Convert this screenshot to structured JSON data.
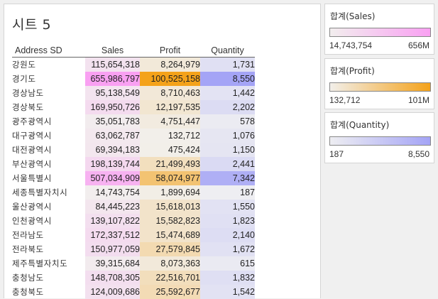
{
  "sheet": {
    "title": "시트 5"
  },
  "table": {
    "headers": {
      "address": "Address SD",
      "sales": "Sales",
      "profit": "Profit",
      "quantity": "Quantity"
    },
    "rows": [
      {
        "address": "강원도",
        "sales": "115,654,318",
        "profit": "8,264,979",
        "quantity": "1,731"
      },
      {
        "address": "경기도",
        "sales": "655,986,797",
        "profit": "100,525,158",
        "quantity": "8,550"
      },
      {
        "address": "경상남도",
        "sales": "95,138,549",
        "profit": "8,710,463",
        "quantity": "1,442"
      },
      {
        "address": "경상북도",
        "sales": "169,950,726",
        "profit": "12,197,535",
        "quantity": "2,202"
      },
      {
        "address": "광주광역시",
        "sales": "35,051,783",
        "profit": "4,751,447",
        "quantity": "578"
      },
      {
        "address": "대구광역시",
        "sales": "63,062,787",
        "profit": "132,712",
        "quantity": "1,076"
      },
      {
        "address": "대전광역시",
        "sales": "69,394,183",
        "profit": "475,424",
        "quantity": "1,150"
      },
      {
        "address": "부산광역시",
        "sales": "198,139,744",
        "profit": "21,499,493",
        "quantity": "2,441"
      },
      {
        "address": "서울특별시",
        "sales": "507,034,909",
        "profit": "58,074,977",
        "quantity": "7,342"
      },
      {
        "address": "세종특별자치시",
        "sales": "14,743,754",
        "profit": "1,899,694",
        "quantity": "187"
      },
      {
        "address": "울산광역시",
        "sales": "84,445,223",
        "profit": "15,618,013",
        "quantity": "1,550"
      },
      {
        "address": "인천광역시",
        "sales": "139,107,822",
        "profit": "15,582,823",
        "quantity": "1,823"
      },
      {
        "address": "전라남도",
        "sales": "172,337,512",
        "profit": "15,474,689",
        "quantity": "2,140"
      },
      {
        "address": "전라북도",
        "sales": "150,977,059",
        "profit": "27,579,845",
        "quantity": "1,672"
      },
      {
        "address": "제주특별자치도",
        "sales": "39,315,684",
        "profit": "8,073,363",
        "quantity": "615"
      },
      {
        "address": "충청남도",
        "sales": "148,708,305",
        "profit": "22,516,701",
        "quantity": "1,832"
      },
      {
        "address": "충청북도",
        "sales": "124,009,686",
        "profit": "25,592,677",
        "quantity": "1,542"
      }
    ]
  },
  "legends": [
    {
      "key": "sales",
      "title": "합계(Sales)",
      "min_label": "14,743,754",
      "max_label": "656M",
      "min": 14743754,
      "max": 655986797,
      "color_low": "#f2eeee",
      "color_high": "#f9a0f2"
    },
    {
      "key": "profit",
      "title": "합계(Profit)",
      "min_label": "132,712",
      "max_label": "101M",
      "min": 132712,
      "max": 100525158,
      "color_low": "#f2efea",
      "color_high": "#f4a21a"
    },
    {
      "key": "quantity",
      "title": "합계(Quantity)",
      "min_label": "187",
      "max_label": "8,550",
      "min": 187,
      "max": 8550,
      "color_low": "#eeeef2",
      "color_high": "#a4a4f6"
    }
  ]
}
